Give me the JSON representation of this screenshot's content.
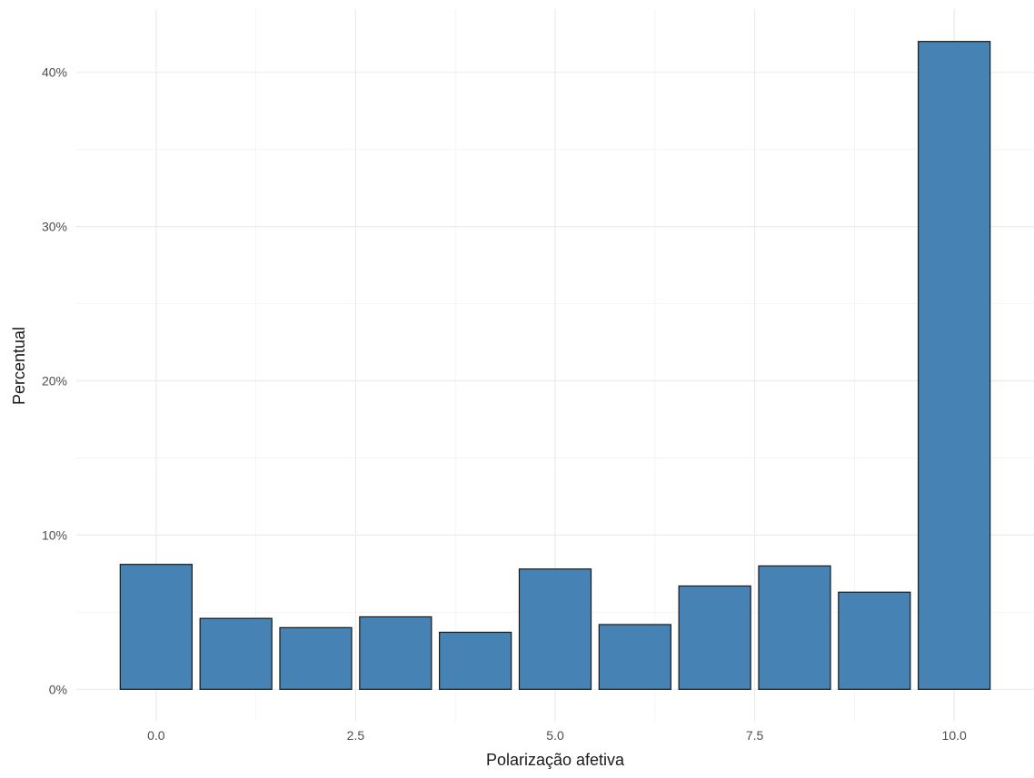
{
  "chart_data": {
    "type": "bar",
    "x": [
      0,
      1,
      2,
      3,
      4,
      5,
      6,
      7,
      8,
      9,
      10
    ],
    "values": [
      0.081,
      0.046,
      0.04,
      0.047,
      0.037,
      0.078,
      0.042,
      0.067,
      0.08,
      0.063,
      0.42
    ],
    "xlabel": "Polarização afetiva",
    "ylabel": "Percentual",
    "xticks": [
      0,
      2.5,
      5,
      7.5,
      10
    ],
    "xtick_labels": [
      "0.0",
      "2.5",
      "5.0",
      "7.5",
      "10.0"
    ],
    "yticks": [
      0,
      0.1,
      0.2,
      0.3,
      0.4
    ],
    "ytick_labels": [
      "0%",
      "10%",
      "20%",
      "30%",
      "40%"
    ],
    "xlim": [
      -1,
      11
    ],
    "ylim": [
      -0.021,
      0.441
    ],
    "grid": true,
    "colors": {
      "bar_fill": "#4682b4",
      "bar_stroke": "#1a1a1a"
    }
  }
}
